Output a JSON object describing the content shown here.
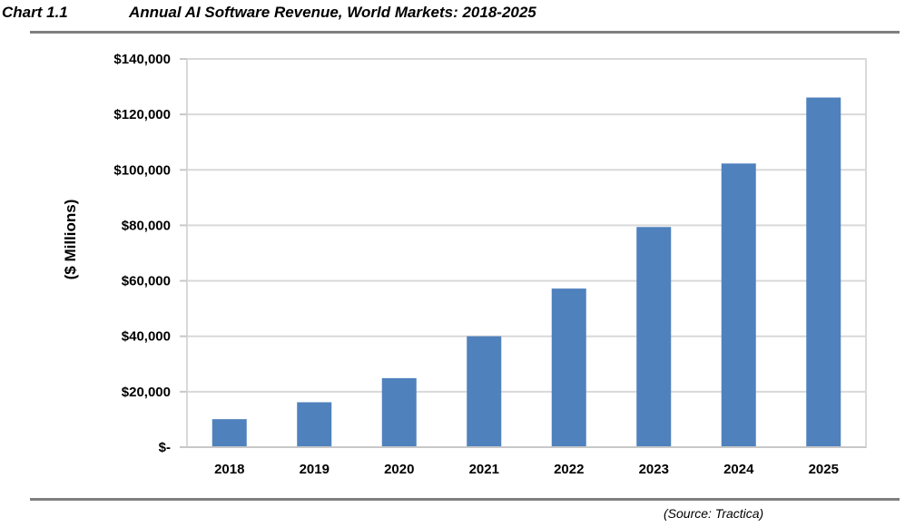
{
  "header": {
    "chart_number": "Chart 1.1",
    "title": "Annual AI Software Revenue, World Markets: 2018-2025"
  },
  "source": "(Source: Tractica)",
  "colors": {
    "bar": "#4f81bd",
    "grid": "#d9d9d9",
    "rule": "#7f7f7f"
  },
  "chart_data": {
    "type": "bar",
    "title": "Annual AI Software Revenue, World Markets: 2018-2025",
    "xlabel": "",
    "ylabel": "($ Millions)",
    "categories": [
      "2018",
      "2019",
      "2020",
      "2021",
      "2022",
      "2023",
      "2024",
      "2025"
    ],
    "values": [
      10100,
      16200,
      24900,
      40000,
      57200,
      79400,
      102300,
      126100
    ],
    "ylim": [
      0,
      140000
    ],
    "yticks": [
      0,
      20000,
      40000,
      60000,
      80000,
      100000,
      120000,
      140000
    ],
    "ytick_labels": [
      "$-",
      "$20,000",
      "$40,000",
      "$60,000",
      "$80,000",
      "$100,000",
      "$120,000",
      "$140,000"
    ],
    "grid": true,
    "legend": "none"
  }
}
